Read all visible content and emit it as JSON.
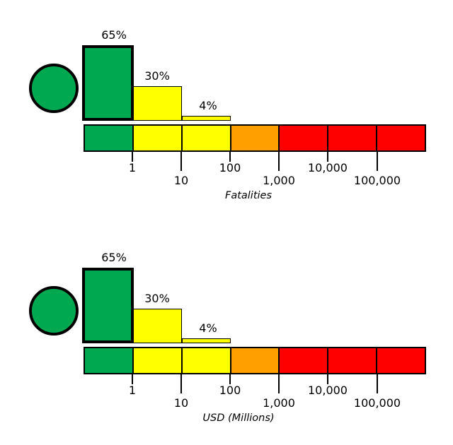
{
  "background": "#FFFFFF",
  "chart_data": [
    {
      "type": "bar",
      "xlabel": "Fatalities",
      "x_scale": "log",
      "categories": [
        "<1",
        "1-10",
        "10-100"
      ],
      "values": [
        65,
        30,
        4
      ],
      "value_labels": [
        "65%",
        "30%",
        "4%"
      ],
      "unit": "percent",
      "bar_colors": [
        "#00A850",
        "#FFFF00",
        "#FFFF00"
      ],
      "highlighted_bar_index": 0,
      "marker": {
        "shape": "circle",
        "color": "#00A850"
      },
      "color_scale": {
        "boundaries": [
          1,
          10,
          100,
          1000,
          10000,
          100000
        ],
        "tick_labels": [
          "1",
          "10",
          "100",
          "1,000",
          "10,000",
          "100,000"
        ],
        "segment_colors": [
          "#00A850",
          "#FFFF00",
          "#FFFF00",
          "#FFA000",
          "#FF0000",
          "#FF0000",
          "#FF0000"
        ]
      },
      "grid": false,
      "legend": false
    },
    {
      "type": "bar",
      "xlabel": "USD (Millions)",
      "x_scale": "log",
      "categories": [
        "<1",
        "1-10",
        "10-100"
      ],
      "values": [
        65,
        30,
        4
      ],
      "value_labels": [
        "65%",
        "30%",
        "4%"
      ],
      "unit": "percent",
      "bar_colors": [
        "#00A850",
        "#FFFF00",
        "#FFFF00"
      ],
      "highlighted_bar_index": 0,
      "marker": {
        "shape": "circle",
        "color": "#00A850"
      },
      "color_scale": {
        "boundaries": [
          1,
          10,
          100,
          1000,
          10000,
          100000
        ],
        "tick_labels": [
          "1",
          "10",
          "100",
          "1,000",
          "10,000",
          "100,000"
        ],
        "segment_colors": [
          "#00A850",
          "#FFFF00",
          "#FFFF00",
          "#FFA000",
          "#FF0000",
          "#FF0000",
          "#FF0000"
        ]
      },
      "grid": false,
      "legend": false
    }
  ]
}
